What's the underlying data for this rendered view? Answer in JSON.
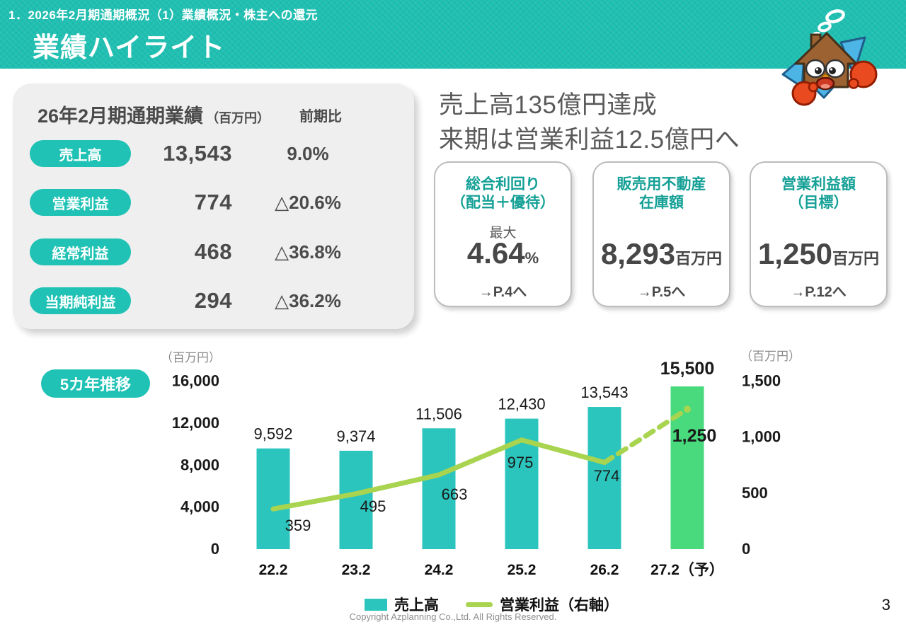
{
  "header": {
    "breadcrumb": "1．2026年2月期通期概況（1）業績概況・株主への還元",
    "title": "業績ハイライト"
  },
  "summary_panel": {
    "title": "26年2月期通期業績",
    "title_unit": "（百万円）",
    "col_yoy": "前期比",
    "rows": [
      {
        "label": "売上高",
        "value": "13,543",
        "yoy": "9.0%"
      },
      {
        "label": "営業利益",
        "value": "774",
        "yoy": "△20.6%"
      },
      {
        "label": "経常利益",
        "value": "468",
        "yoy": "△36.8%"
      },
      {
        "label": "当期純利益",
        "value": "294",
        "yoy": "△36.2%"
      }
    ]
  },
  "headline": {
    "line1": "売上高135億円達成",
    "line2": "来期は営業利益12.5億円へ"
  },
  "cards": [
    {
      "title1": "総合利回り",
      "title2": "（配当＋優待）",
      "prefix": "最大",
      "value": "4.64",
      "unit": "%",
      "link": "→P.4へ"
    },
    {
      "title1": "販売用不動産",
      "title2": "在庫額",
      "prefix": "",
      "value": "8,293",
      "unit": "百万円",
      "link": "→P.5へ"
    },
    {
      "title1": "営業利益額",
      "title2": "（目標）",
      "prefix": "",
      "value": "1,250",
      "unit": "百万円",
      "link": "→P.12へ"
    }
  ],
  "chart": {
    "badge": "5カ年推移",
    "legend": [
      {
        "label": "売上高"
      },
      {
        "label": "営業利益（右軸）"
      }
    ]
  },
  "chart_data": {
    "type": "bar+line combo",
    "categories": [
      "22.2",
      "23.2",
      "24.2",
      "25.2",
      "26.2",
      "27.2（予）"
    ],
    "series": [
      {
        "name": "売上高",
        "type": "bar",
        "axis": "left",
        "values": [
          9592,
          9374,
          11506,
          12430,
          13543,
          15500
        ],
        "labels": [
          "9,592",
          "9,374",
          "11,506",
          "12,430",
          "13,543",
          "15,500"
        ]
      },
      {
        "name": "営業利益（右軸）",
        "type": "line",
        "axis": "right",
        "values": [
          359,
          495,
          663,
          975,
          774,
          1250
        ],
        "labels": [
          "359",
          "495",
          "663",
          "975",
          "774",
          "1,250"
        ]
      }
    ],
    "left_axis": {
      "unit": "（百万円）",
      "max": 16000,
      "ticks": [
        0,
        4000,
        8000,
        12000,
        16000
      ],
      "labels": [
        "0",
        "4,000",
        "8,000",
        "12,000",
        "16,000"
      ]
    },
    "right_axis": {
      "unit": "（百万円）",
      "max": 1500,
      "ticks": [
        0,
        500,
        1000,
        1500
      ],
      "labels": [
        "0",
        "500",
        "1,000",
        "1,500"
      ]
    },
    "forecast_index": 5,
    "grid": false,
    "colors": {
      "bar": "#2bc5bd",
      "bar_forecast": "#48da7c",
      "line": "#a8d44f"
    }
  },
  "footer": {
    "copyright": "Copyright Azplanning Co.,Ltd. All Rights Reserved.",
    "page_number": "3"
  }
}
